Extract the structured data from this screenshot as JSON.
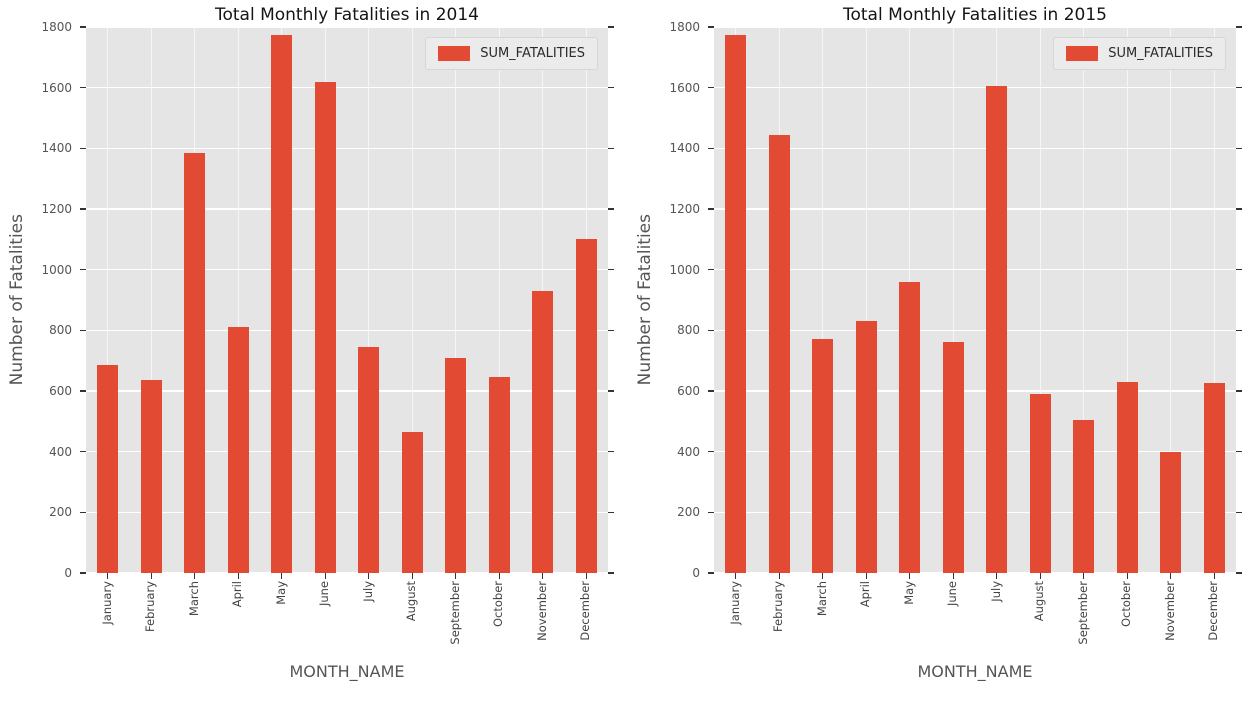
{
  "figure": {
    "background": "#ffffff",
    "plot_background": "#E5E5E5",
    "gridline_color": "#ffffff",
    "text_color": "#555555"
  },
  "chart_data": [
    {
      "type": "bar",
      "title": "Total Monthly Fatalities in 2014",
      "xlabel": "MONTH_NAME",
      "ylabel": "Number of Fatalities",
      "legend_label": "SUM_FATALITIES",
      "legend_position": "upper right",
      "categories": [
        "January",
        "February",
        "March",
        "April",
        "May",
        "June",
        "July",
        "August",
        "September",
        "October",
        "November",
        "December"
      ],
      "values": [
        685,
        635,
        1385,
        810,
        1775,
        1620,
        745,
        465,
        710,
        645,
        930,
        1100
      ],
      "ylim": [
        0,
        1800
      ],
      "ytick_step": 200,
      "yticks": [
        0,
        200,
        400,
        600,
        800,
        1000,
        1200,
        1400,
        1600,
        1800
      ],
      "bar_color": "#E24A33",
      "grid": true
    },
    {
      "type": "bar",
      "title": "Total Monthly Fatalities in 2015",
      "xlabel": "MONTH_NAME",
      "ylabel": "Number of Fatalities",
      "legend_label": "SUM_FATALITIES",
      "legend_position": "upper right",
      "categories": [
        "January",
        "February",
        "March",
        "April",
        "May",
        "June",
        "July",
        "August",
        "September",
        "October",
        "November",
        "December"
      ],
      "values": [
        1775,
        1445,
        770,
        830,
        960,
        760,
        1605,
        590,
        505,
        630,
        400,
        625
      ],
      "ylim": [
        0,
        1800
      ],
      "ytick_step": 200,
      "yticks": [
        0,
        200,
        400,
        600,
        800,
        1000,
        1200,
        1400,
        1600,
        1800
      ],
      "bar_color": "#E24A33",
      "grid": true
    }
  ]
}
